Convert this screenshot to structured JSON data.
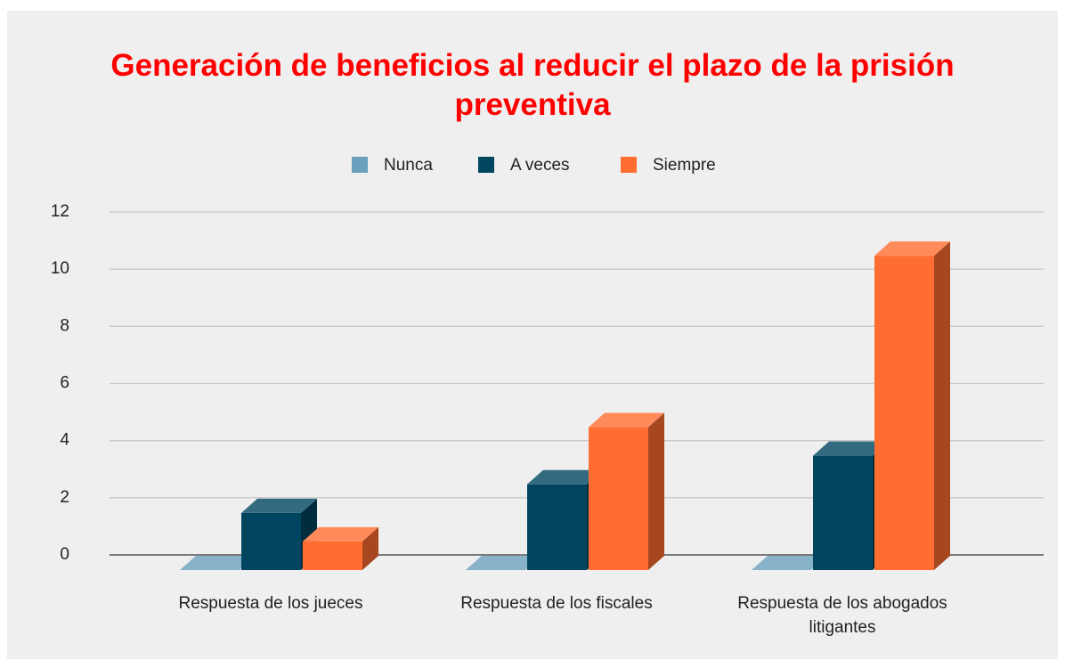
{
  "chart_data": {
    "type": "bar3d",
    "title": "Generación de beneficios al reducir el plazo de la prisión preventiva",
    "categories": [
      "Respuesta de los jueces",
      "Respuesta de los fiscales",
      "Respuesta de los abogados litigantes"
    ],
    "series": [
      {
        "name": "Nunca",
        "color": "#6a9fbd",
        "values": [
          0,
          0,
          0
        ]
      },
      {
        "name": "A veces",
        "color": "#00455f",
        "values": [
          2,
          3,
          4
        ]
      },
      {
        "name": "Siempre",
        "color": "#ff6d31",
        "values": [
          1,
          5,
          11
        ]
      }
    ],
    "ylim": [
      0,
      12
    ],
    "yticks": [
      0,
      2,
      4,
      6,
      8,
      10,
      12
    ],
    "grid": true,
    "legend": "top"
  }
}
